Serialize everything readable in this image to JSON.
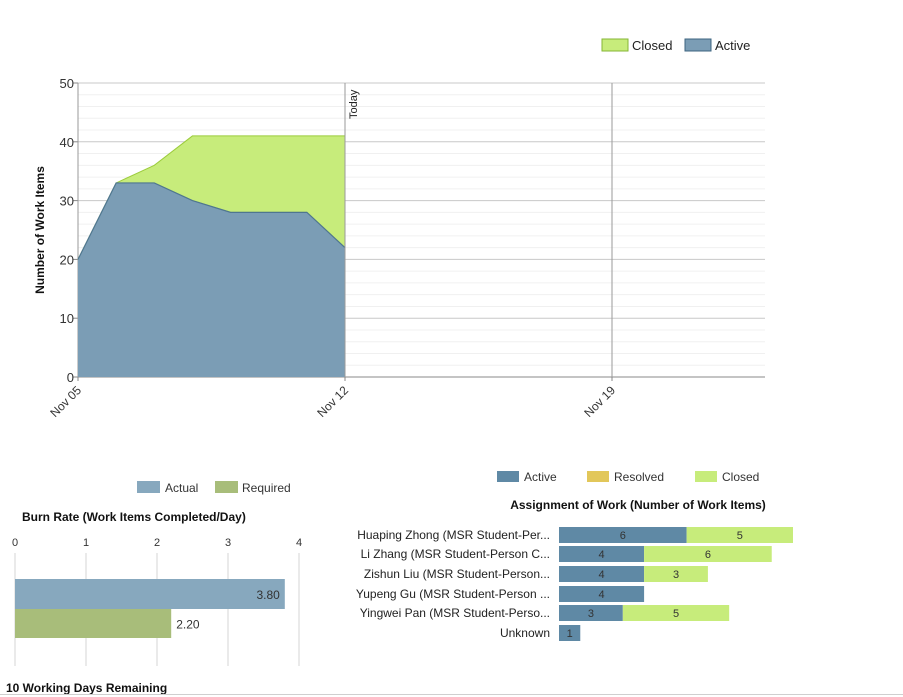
{
  "chart_data": [
    {
      "type": "area",
      "title": "",
      "ylabel": "Number of Work Items",
      "xlabel": "",
      "ylim": [
        0,
        50
      ],
      "yticks": [
        "0",
        "10",
        "20",
        "30",
        "40",
        "50"
      ],
      "xticks": [
        "Nov 05",
        "Nov 12",
        "Nov 19"
      ],
      "today_label": "Today",
      "stacked": true,
      "x": [
        "Nov 05",
        "Nov 06",
        "Nov 07",
        "Nov 08",
        "Nov 09",
        "Nov 10",
        "Nov 11",
        "Nov 12"
      ],
      "series": [
        {
          "name": "Active",
          "values": [
            20,
            33,
            33,
            30,
            28,
            28,
            28,
            22
          ],
          "color": "#7b9db5"
        },
        {
          "name": "Closed",
          "values": [
            0,
            0,
            3,
            11,
            13,
            13,
            13,
            19
          ],
          "color": "#c7ec7b"
        }
      ],
      "legend": {
        "position": "top-right",
        "items": [
          "Closed",
          "Active"
        ]
      },
      "grid": true
    },
    {
      "type": "bar",
      "orientation": "horizontal",
      "title": "Burn Rate (Work Items Completed/Day)",
      "xlim": [
        0,
        4
      ],
      "xticks": [
        "0",
        "1",
        "2",
        "3",
        "4"
      ],
      "categories": [
        "Actual",
        "Required"
      ],
      "values": [
        3.8,
        2.2
      ],
      "value_labels": [
        "3.80",
        "2.20"
      ],
      "colors": [
        "#87a8be",
        "#a8bd7a"
      ],
      "legend": {
        "position": "top",
        "items": [
          "Actual",
          "Required"
        ]
      }
    },
    {
      "type": "bar",
      "orientation": "horizontal",
      "stacked": true,
      "title": "Assignment of Work (Number of Work Items)",
      "categories": [
        "Huaping Zhong (MSR Student-Per...",
        "Li Zhang (MSR Student-Person C...",
        "Zishun Liu (MSR Student-Person...",
        "Yupeng Gu (MSR Student-Person ...",
        "Yingwei Pan (MSR Student-Perso...",
        "Unknown"
      ],
      "series": [
        {
          "name": "Active",
          "values": [
            6,
            4,
            4,
            4,
            3,
            1
          ],
          "color": "#5f89a5"
        },
        {
          "name": "Resolved",
          "values": [
            0,
            0,
            0,
            0,
            0,
            0
          ],
          "color": "#e2c75a"
        },
        {
          "name": "Closed",
          "values": [
            5,
            6,
            3,
            0,
            5,
            0
          ],
          "color": "#c7ec7b"
        }
      ],
      "legend": {
        "position": "top",
        "items": [
          "Active",
          "Resolved",
          "Closed"
        ]
      }
    }
  ],
  "footer": {
    "text": "10 Working Days Remaining"
  }
}
